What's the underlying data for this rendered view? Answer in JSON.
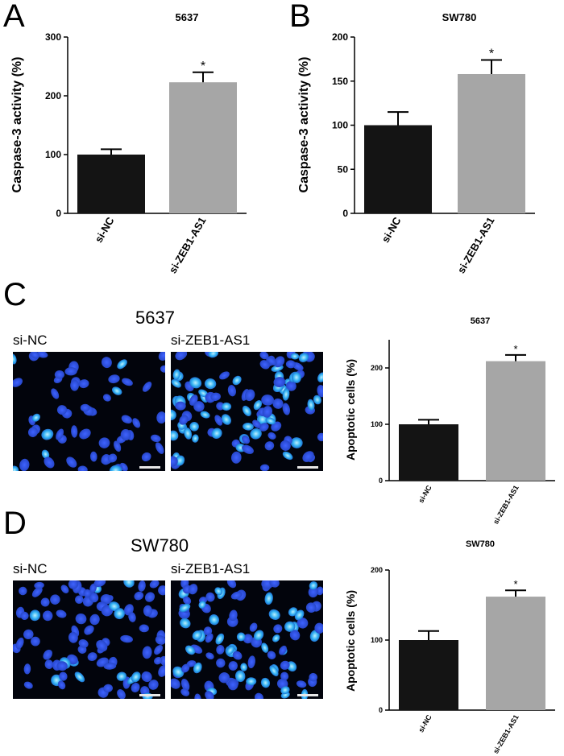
{
  "panels": {
    "A": {
      "letter": "A"
    },
    "B": {
      "letter": "B"
    },
    "C": {
      "letter": "C",
      "image_title": "5637",
      "left_label": "si-NC",
      "right_label": "si-ZEB1-AS1"
    },
    "D": {
      "letter": "D",
      "image_title": "SW780",
      "left_label": "si-NC",
      "right_label": "si-ZEB1-AS1"
    }
  },
  "colors": {
    "si_nc": "#141414",
    "si_zeb1": "#a6a6a6",
    "nucleus": "#2646c9",
    "nucleus_bright": "#34b4f4",
    "micro_bg": "#02040c"
  },
  "icons": {
    "significance": "asterisk",
    "scale_bar": "scale-bar"
  },
  "chart_data": [
    {
      "id": "A",
      "type": "bar",
      "title": "5637",
      "xlabel": "",
      "ylabel": "Caspase-3 activity (%)",
      "categories": [
        "si-NC",
        "si-ZEB1-AS1"
      ],
      "values": [
        100,
        223
      ],
      "errors": [
        9,
        17
      ],
      "ylim": [
        0,
        300
      ],
      "yticks": [
        "0",
        "100",
        "200",
        "300"
      ],
      "grid": false,
      "significance": [
        "",
        "*"
      ]
    },
    {
      "id": "B",
      "type": "bar",
      "title": "SW780",
      "xlabel": "",
      "ylabel": "Caspase-3 activity (%)",
      "categories": [
        "si-NC",
        "si-ZEB1-AS1"
      ],
      "values": [
        100,
        158
      ],
      "errors": [
        15,
        16
      ],
      "ylim": [
        0,
        200
      ],
      "yticks": [
        "0",
        "50",
        "100",
        "150",
        "200"
      ],
      "grid": false,
      "significance": [
        "",
        "*"
      ]
    },
    {
      "id": "C",
      "type": "bar",
      "title": "5637",
      "xlabel": "",
      "ylabel": "Apoptotic cells (%)",
      "categories": [
        "si-NC",
        "si-ZEB1-AS1"
      ],
      "values": [
        100,
        212
      ],
      "errors": [
        8,
        11
      ],
      "ylim": [
        0,
        250
      ],
      "yticks": [
        "0",
        "100",
        "200"
      ],
      "grid": false,
      "significance": [
        "",
        "*"
      ]
    },
    {
      "id": "D",
      "type": "bar",
      "title": "SW780",
      "xlabel": "",
      "ylabel": "Apoptotic cells (%)",
      "categories": [
        "si-NC",
        "si-ZEB1-AS1"
      ],
      "values": [
        100,
        162
      ],
      "errors": [
        13,
        9
      ],
      "ylim": [
        0,
        200
      ],
      "yticks": [
        "0",
        "100",
        "200"
      ],
      "grid": false,
      "significance": [
        "",
        "*"
      ]
    }
  ]
}
